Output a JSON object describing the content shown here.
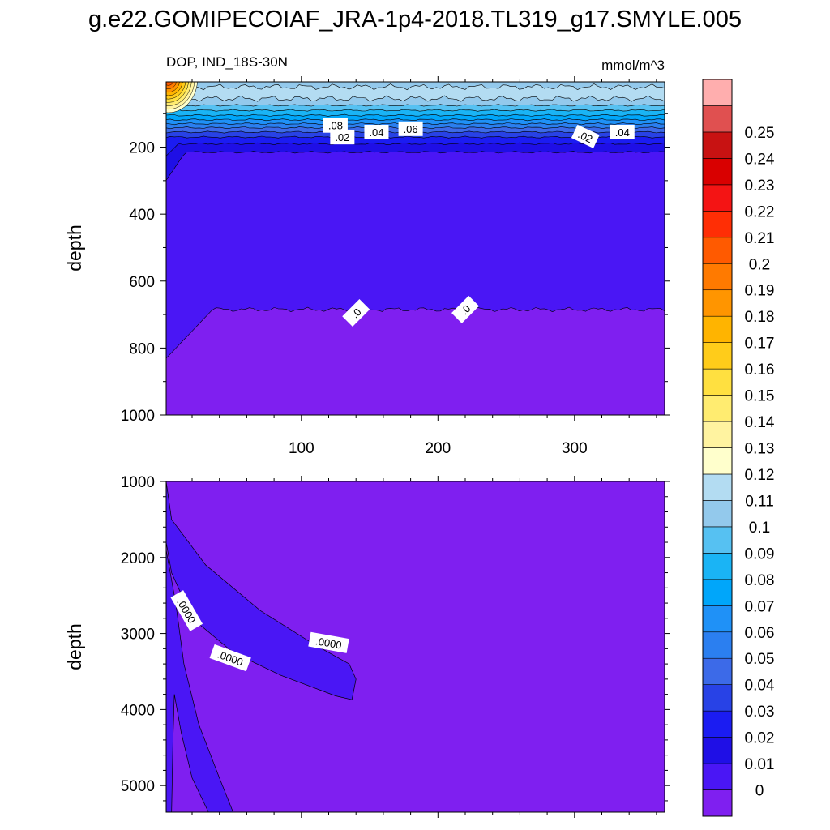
{
  "title": "g.e22.GOMIPECOIAF_JRA-1p4-2018.TL319_g17.SMYLE.005",
  "colors": {
    "levels": [
      "#7f1ff0",
      "#4a16f5",
      "#1f0fe6",
      "#1b1cf2",
      "#2842e6",
      "#3c6ae8",
      "#2b7ff0",
      "#1f91f7",
      "#00a6fa",
      "#1ab4f5",
      "#56c1f2",
      "#93c9ec",
      "#b3dcf2",
      "#ffffcc",
      "#fff3a0",
      "#ffec70",
      "#ffe040",
      "#ffcc1a",
      "#ffb400",
      "#ff9500",
      "#ff7a00",
      "#ff5a00",
      "#ff2e05",
      "#f41414",
      "#d90000",
      "#c81212",
      "#e05050",
      "#ffaeae"
    ],
    "contour_line": "#000000"
  },
  "chart_data": [
    {
      "type": "heatmap",
      "panel": "upper",
      "variable_label": "DOP, IND_18S-30N",
      "units_label": "mmol/m^3",
      "ylabel": "depth",
      "xlabel": "",
      "xlim": [
        1,
        366
      ],
      "ylim": [
        1000,
        5
      ],
      "x_ticks": [
        100,
        200,
        300
      ],
      "y_ticks": [
        200,
        400,
        600,
        800,
        1000
      ],
      "x_tick_labels": [
        "100",
        "200",
        "300"
      ],
      "y_tick_labels": [
        "200",
        "400",
        "600",
        "800",
        "1000"
      ],
      "contour_labels": [
        ".08",
        ".06",
        ".04",
        ".04",
        ".02",
        ".02",
        ".0",
        ".0"
      ],
      "depth_of_contour": {
        "0.12": 20,
        "0.11": 55,
        "0.1": 75,
        "0.09": 90,
        "0.08": 105,
        "0.07": 118,
        "0.06": 130,
        "0.05": 142,
        "0.04": 155,
        "0.03": 170,
        "0.02": 190,
        "0.01": 215,
        "0.0": 685
      },
      "surface_max_near_x": 5,
      "surface_max_value": 0.25
    },
    {
      "type": "heatmap",
      "panel": "lower",
      "ylabel": "depth",
      "xlabel": "",
      "xlim": [
        1,
        366
      ],
      "ylim": [
        5350,
        1000
      ],
      "x_ticks": [
        100,
        200,
        300
      ],
      "y_ticks": [
        1000,
        2000,
        3000,
        4000,
        5000
      ],
      "y_tick_labels": [
        "1000",
        "2000",
        "3000",
        "4000",
        "5000"
      ],
      "contour_labels": [
        ".0000",
        ".0000",
        ".0000"
      ],
      "background_level": "0",
      "feature_level": "0.01"
    }
  ],
  "colorbar": {
    "labels": [
      "0",
      "0.01",
      "0.02",
      "0.03",
      "0.04",
      "0.05",
      "0.06",
      "0.07",
      "0.08",
      "0.09",
      "0.1",
      "0.11",
      "0.12",
      "0.13",
      "0.14",
      "0.15",
      "0.16",
      "0.17",
      "0.18",
      "0.19",
      "0.2",
      "0.21",
      "0.22",
      "0.23",
      "0.24",
      "0.25"
    ],
    "orientation": "vertical",
    "position": "right"
  }
}
